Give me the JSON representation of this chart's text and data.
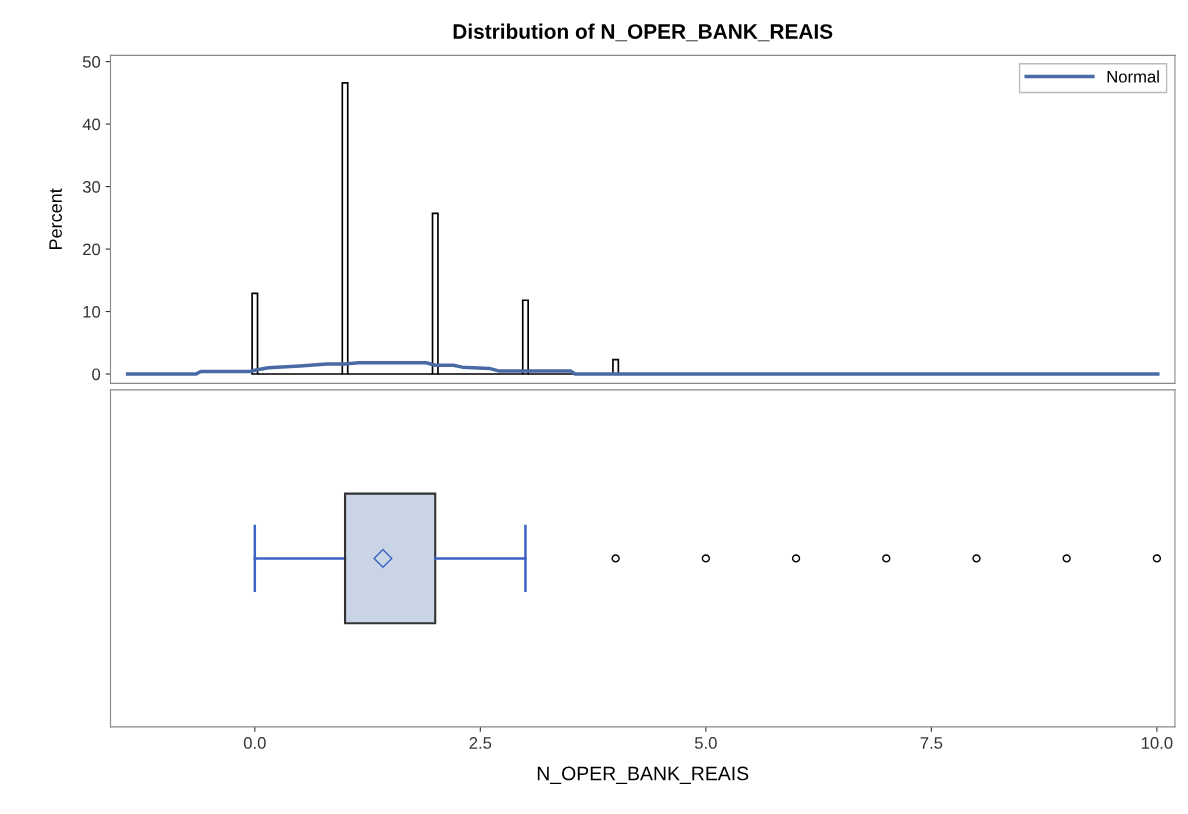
{
  "chart_data": [
    {
      "type": "histogram",
      "title": "Distribution of N_OPER_BANK_REAIS",
      "ylabel": "Percent",
      "bins": [
        -0.03,
        0.03,
        0.97,
        1.03,
        1.97,
        2.03,
        2.97,
        3.03,
        3.97,
        4.03
      ],
      "values": [
        12.9,
        0,
        46.6,
        0,
        25.7,
        0,
        11.8,
        0,
        2.3
      ],
      "color": "#000000",
      "series": [
        {
          "type": "line",
          "name": "Normal",
          "color": "#4a6aa5",
          "x": [
            -1.41,
            -0.65,
            -0.6,
            -0.05,
            0,
            0.15,
            0.5,
            0.8,
            1.0,
            1.15,
            1.9,
            2.0,
            2.2,
            2.3,
            2.6,
            2.7,
            3.5,
            3.55,
            10.01
          ],
          "values": [
            0,
            0,
            0.4,
            0.4,
            0.6,
            1.0,
            1.3,
            1.6,
            1.6,
            1.8,
            1.8,
            1.4,
            1.4,
            1.1,
            0.9,
            0.5,
            0.5,
            0,
            0
          ]
        }
      ],
      "xlim": [
        -1.6,
        10.2
      ],
      "ylim": [
        -1.5,
        51
      ],
      "yticks": [
        0,
        10,
        20,
        30,
        40,
        50
      ],
      "tick_labels": "y",
      "legend": "top right",
      "grid": false
    },
    {
      "type": "box",
      "xlabel": "N_OPER_BANK_REAIS",
      "orientation": "horizontal",
      "categories": [
        null
      ],
      "series": [
        {
          "color": "#c9d5e6",
          "boxes": [
            {
              "low": 0,
              "q1": 1,
              "median": 1,
              "q3": 2,
              "high": 3,
              "mean": 1.42,
              "outliers": [
                4,
                5,
                6,
                7,
                8,
                9,
                10
              ]
            }
          ]
        }
      ],
      "xlim": [
        -1.6,
        10.2
      ],
      "xticks": [
        {
          "value": 0,
          "label": "0.0"
        },
        {
          "value": 2.5,
          "label": "2.5"
        },
        {
          "value": 5,
          "label": "5.0"
        },
        {
          "value": 7.5,
          "label": "7.5"
        },
        {
          "value": 10,
          "label": "10.0"
        }
      ],
      "tick_labels": "x",
      "grid": false
    }
  ]
}
